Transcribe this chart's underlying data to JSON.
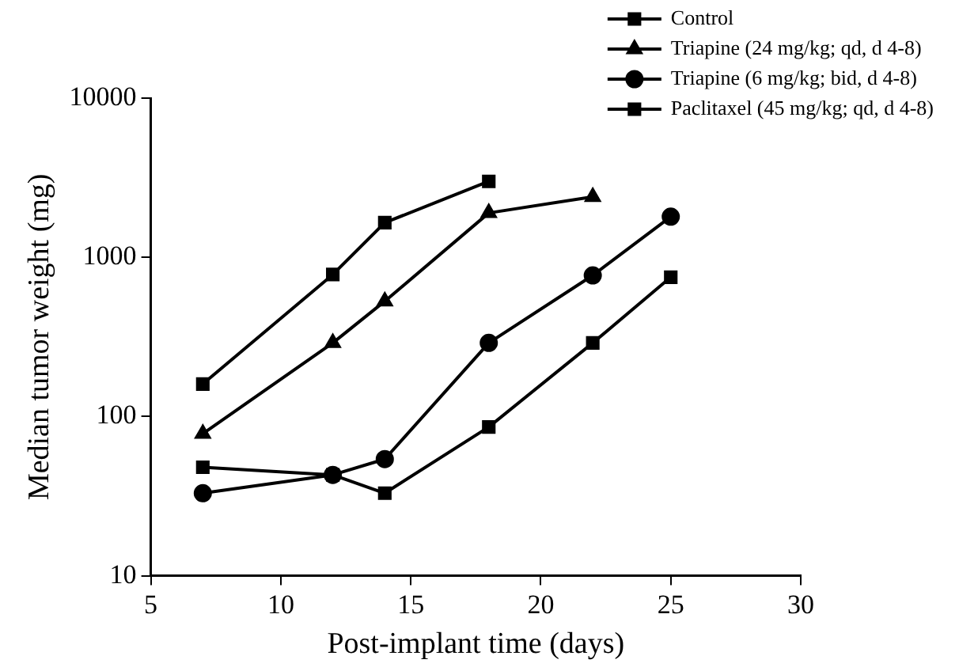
{
  "chart_data": {
    "type": "line",
    "xlabel": "Post-implant time (days)",
    "ylabel": "Median tumor weight (mg)",
    "log": "y",
    "xlim": [
      5,
      30
    ],
    "xticks": [
      5,
      10,
      15,
      20,
      25,
      30
    ],
    "ylim": [
      10,
      10000
    ],
    "yticks": [
      10,
      100,
      1000,
      10000
    ],
    "grid": false,
    "legend": "top right",
    "line_style": "solid",
    "series": [
      {
        "name": "Control",
        "color": "#000000",
        "marker": "square",
        "x": [
          7,
          12,
          14,
          18
        ],
        "values": [
          160,
          780,
          1650,
          3000
        ]
      },
      {
        "name": "Triapine (24 mg/kg; qd, d 4-8)",
        "color": "#000000",
        "marker": "triangle",
        "x": [
          7,
          12,
          14,
          18,
          22
        ],
        "values": [
          78,
          290,
          530,
          1900,
          2400
        ]
      },
      {
        "name": "Triapine (6 mg/kg; bid, d 4-8)",
        "color": "#000000",
        "marker": "circle",
        "x": [
          7,
          12,
          14,
          18,
          22,
          25
        ],
        "values": [
          33,
          43,
          54,
          290,
          770,
          1800
        ]
      },
      {
        "name": "Paclitaxel (45 mg/kg; qd, d 4-8)",
        "color": "#000000",
        "marker": "square",
        "x": [
          7,
          12,
          14,
          18,
          22,
          25
        ],
        "values": [
          48,
          43,
          33,
          86,
          290,
          750
        ]
      }
    ]
  }
}
